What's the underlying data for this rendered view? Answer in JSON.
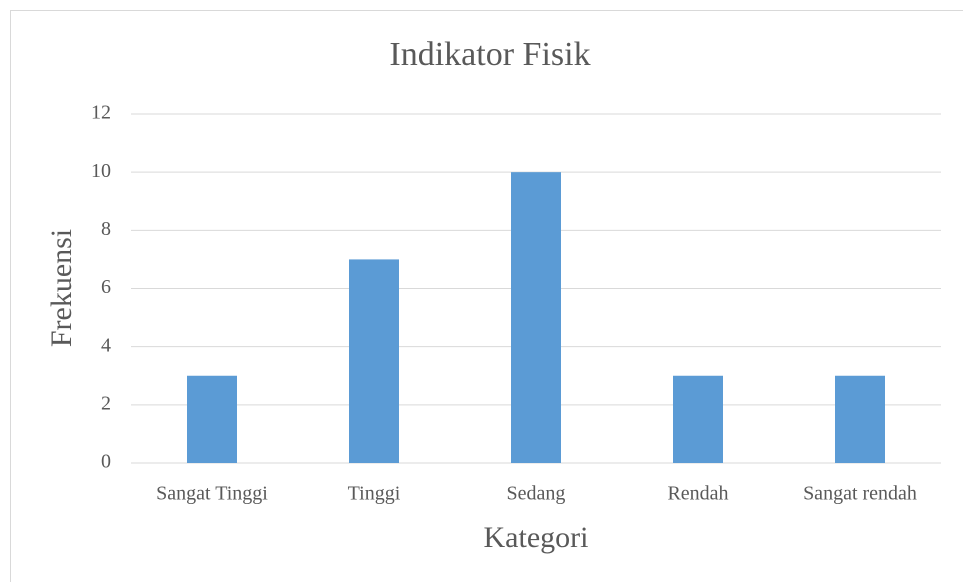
{
  "chart_data": {
    "type": "bar",
    "title": "Indikator Fisik",
    "x_label": "Kategori",
    "y_label": "Frekuensi",
    "categories": [
      "Sangat Tinggi",
      "Tinggi",
      "Sedang",
      "Rendah",
      "Sangat rendah"
    ],
    "values": [
      3,
      7,
      10,
      3,
      3
    ],
    "color": "#5b9bd5",
    "ylim": [
      0,
      12
    ],
    "yticks": [
      0,
      2,
      4,
      6,
      8,
      10,
      12
    ],
    "grid": true
  }
}
